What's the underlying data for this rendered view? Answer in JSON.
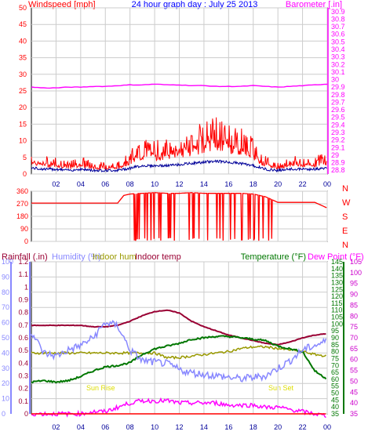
{
  "title": "24 hour graph day : July 25 2013",
  "colors": {
    "red": "#ff0000",
    "blue": "#0000ff",
    "magenta": "#ff00ff",
    "darkgreen": "#007700",
    "navy": "#000099",
    "violet": "#8888ff",
    "olive": "#999900",
    "maroon": "#990033",
    "grid": "#cccccc",
    "purple": "#cc00cc"
  },
  "xaxis": {
    "ticks": [
      "02",
      "04",
      "06",
      "08",
      "10",
      "12",
      "14",
      "16",
      "18",
      "20",
      "22",
      "00"
    ]
  },
  "panel1": {
    "left_label": "Windspeed [mph]",
    "right_label": "Barometer [.in]",
    "left_ticks": [
      "50",
      "45",
      "40",
      "35",
      "30",
      "25",
      "20",
      "15",
      "10",
      "5",
      "0"
    ],
    "right_ticks": [
      "30.9",
      "30.8",
      "30.7",
      "30.6",
      "30.5",
      "30.4",
      "30.3",
      "30.2",
      "30.1",
      "30",
      "29.9",
      "29.8",
      "29.7",
      "29.6",
      "29.5",
      "29.4",
      "29.3",
      "29.2",
      "29.1",
      "29",
      "28.9",
      "28.8"
    ]
  },
  "panel2": {
    "left_ticks": [
      "360",
      "270",
      "180",
      "90",
      "0"
    ],
    "right_letters": [
      "N",
      "W",
      "S",
      "E",
      "N"
    ]
  },
  "panel3": {
    "labels": {
      "rainfall": "Rainfall (.in)",
      "humidity": "Humidity (%)",
      "indoor_hum": "Indoor hum",
      "indoor_temp": "Indoor temp",
      "temperature": "Temperature (°F)",
      "dew_point": "Dew Point (°F)"
    },
    "humidity_ticks": [
      "100",
      "90",
      "80",
      "70",
      "60",
      "50",
      "40",
      "30",
      "20",
      "10",
      "0"
    ],
    "rain_ticks": [
      "1.2",
      "1.1",
      "1",
      "0.9",
      "0.8",
      "0.7",
      "0.6",
      "0.5",
      "0.4",
      "0.3",
      "0.2",
      "0.1",
      "0"
    ],
    "temp_ticks": [
      "145",
      "140",
      "135",
      "130",
      "125",
      "120",
      "115",
      "110",
      "105",
      "100",
      "95",
      "90",
      "85",
      "80",
      "75",
      "70",
      "65",
      "60",
      "55",
      "50",
      "45",
      "40",
      "35"
    ],
    "dew_ticks": [
      "105",
      "100",
      "95",
      "90",
      "85",
      "80",
      "75",
      "70",
      "65",
      "60",
      "55",
      "50",
      "45",
      "40",
      "35"
    ],
    "sun_rise": "Sun Rise",
    "sun_set": "Sun Set"
  },
  "chart_data": [
    {
      "type": "line",
      "title": "24 hour graph day : July 25 2013",
      "x": [
        0,
        1,
        2,
        3,
        4,
        5,
        6,
        7,
        8,
        9,
        10,
        11,
        12,
        13,
        14,
        15,
        16,
        17,
        18,
        19,
        20,
        21,
        22,
        23,
        24
      ],
      "series": [
        {
          "name": "Windspeed [mph]",
          "axis": "left",
          "values": [
            4,
            3,
            3,
            2,
            3,
            2,
            2,
            2,
            4,
            6,
            6,
            6,
            7,
            8,
            9,
            10,
            9,
            8,
            6,
            3,
            2,
            3,
            3,
            3,
            4
          ]
        },
        {
          "name": "Barometer [.in]",
          "axis": "right",
          "values": [
            29.9,
            29.89,
            29.89,
            29.9,
            29.9,
            29.91,
            29.91,
            29.92,
            29.93,
            29.93,
            29.94,
            29.93,
            29.93,
            29.92,
            29.92,
            29.91,
            29.91,
            29.91,
            29.92,
            29.91,
            29.9,
            29.91,
            29.92,
            29.93,
            29.94
          ]
        }
      ],
      "ylim_left": [
        0,
        50
      ],
      "ylim_right": [
        28.75,
        30.95
      ]
    },
    {
      "type": "line",
      "x": [
        0,
        1,
        2,
        3,
        4,
        5,
        6,
        7,
        7.5,
        8,
        9,
        10,
        11,
        12,
        13,
        14,
        15,
        16,
        17,
        18,
        19,
        20,
        21,
        22,
        23,
        24
      ],
      "series": [
        {
          "name": "Wind direction",
          "values": [
            275,
            275,
            275,
            275,
            275,
            275,
            275,
            275,
            330,
            340,
            345,
            350,
            345,
            345,
            350,
            345,
            345,
            345,
            345,
            340,
            320,
            280,
            280,
            280,
            280,
            240
          ]
        }
      ],
      "ylim": [
        0,
        360
      ]
    },
    {
      "type": "line",
      "x": [
        0,
        1,
        2,
        3,
        4,
        5,
        6,
        7,
        8,
        9,
        10,
        11,
        12,
        13,
        14,
        15,
        16,
        17,
        18,
        19,
        20,
        21,
        22,
        23,
        24
      ],
      "series": [
        {
          "name": "Rainfall (.in)",
          "axis": "rain",
          "values": [
            0,
            0,
            0,
            0,
            0,
            0,
            0,
            0,
            0,
            0,
            0,
            0,
            0,
            0,
            0,
            0,
            0,
            0,
            0,
            0,
            0,
            0,
            0,
            0,
            0
          ]
        },
        {
          "name": "Humidity (%)",
          "axis": "humidity",
          "values": [
            54,
            40,
            38,
            42,
            45,
            50,
            60,
            58,
            42,
            35,
            34,
            33,
            29,
            27,
            26,
            25,
            24,
            23,
            24,
            25,
            30,
            35,
            42,
            45,
            48
          ]
        },
        {
          "name": "Indoor hum",
          "axis": "humidity",
          "values": [
            40,
            40,
            40,
            40,
            40,
            40,
            40,
            40,
            40,
            40,
            40,
            37,
            37,
            38,
            39,
            40,
            41,
            43,
            44,
            44,
            43,
            42,
            41,
            39,
            38
          ]
        },
        {
          "name": "Indoor temp",
          "axis": "temp",
          "values": [
            99,
            99,
            99,
            99,
            99,
            98,
            98,
            99,
            102,
            106,
            109,
            110,
            108,
            102,
            98,
            95,
            92,
            90,
            88,
            86,
            85,
            87,
            90,
            92,
            93
          ]
        },
        {
          "name": "Temperature (°F)",
          "axis": "temp",
          "values": [
            58,
            59,
            58,
            59,
            62,
            66,
            69,
            70,
            72,
            78,
            82,
            84,
            86,
            89,
            90,
            91,
            91,
            90,
            89,
            88,
            84,
            82,
            80,
            66,
            60
          ]
        },
        {
          "name": "Dew Point (°F)",
          "axis": "dew",
          "values": [
            35,
            35,
            35,
            35,
            35,
            36,
            36,
            38,
            40,
            41,
            41,
            41,
            40,
            40,
            40,
            40,
            39,
            39,
            39,
            38,
            38,
            37,
            36,
            35,
            34
          ]
        }
      ],
      "ylim_humidity": [
        0,
        100
      ],
      "ylim_rain": [
        0,
        1.2
      ],
      "ylim_temp": [
        35,
        145
      ],
      "ylim_dew": [
        35,
        105
      ]
    }
  ]
}
